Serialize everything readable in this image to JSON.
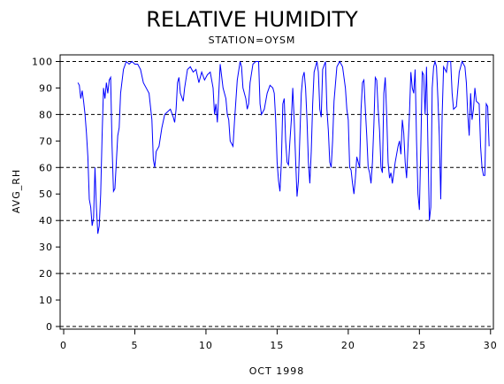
{
  "chart_data": {
    "type": "line",
    "title": "RELATIVE HUMIDITY",
    "subtitle": "STATION=OYSM",
    "x_label": "OCT 1998",
    "y_label": "AVG_RH",
    "color": "#0000ff",
    "xlim": [
      -0.25,
      30.2
    ],
    "ylim": [
      -1,
      102.5
    ],
    "xticks": [
      0,
      5,
      10,
      15,
      20,
      25,
      30
    ],
    "yticks": [
      0,
      10,
      20,
      30,
      40,
      50,
      60,
      70,
      80,
      90,
      100
    ],
    "grid_lines": [
      0,
      20,
      40,
      60,
      80,
      100
    ],
    "x": [
      1.0,
      1.1,
      1.2,
      1.3,
      1.4,
      1.5,
      1.6,
      1.7,
      1.8,
      1.9,
      2.0,
      2.1,
      2.2,
      2.3,
      2.4,
      2.5,
      2.6,
      2.7,
      2.8,
      2.9,
      3.0,
      3.1,
      3.2,
      3.3,
      3.4,
      3.5,
      3.6,
      3.7,
      3.8,
      3.9,
      4.0,
      4.2,
      4.4,
      4.6,
      4.8,
      5.0,
      5.2,
      5.4,
      5.6,
      5.8,
      6.0,
      6.2,
      6.3,
      6.4,
      6.5,
      6.7,
      6.9,
      7.1,
      7.3,
      7.5,
      7.7,
      7.8,
      7.9,
      8.0,
      8.1,
      8.2,
      8.4,
      8.5,
      8.7,
      8.9,
      9.1,
      9.3,
      9.5,
      9.7,
      9.9,
      10.1,
      10.3,
      10.5,
      10.6,
      10.7,
      10.8,
      10.9,
      11.0,
      11.2,
      11.4,
      11.5,
      11.6,
      11.7,
      11.9,
      12.0,
      12.2,
      12.4,
      12.5,
      12.6,
      12.8,
      12.9,
      13.0,
      13.1,
      13.3,
      13.5,
      13.7,
      13.8,
      13.9,
      14.1,
      14.3,
      14.5,
      14.7,
      14.8,
      14.9,
      15.0,
      15.1,
      15.2,
      15.3,
      15.4,
      15.5,
      15.6,
      15.7,
      15.8,
      15.9,
      16.0,
      16.1,
      16.2,
      16.3,
      16.4,
      16.5,
      16.6,
      16.7,
      16.8,
      16.9,
      17.0,
      17.1,
      17.2,
      17.3,
      17.4,
      17.5,
      17.6,
      17.8,
      17.9,
      18.0,
      18.1,
      18.2,
      18.4,
      18.5,
      18.6,
      18.7,
      18.8,
      18.9,
      19.0,
      19.2,
      19.4,
      19.6,
      19.8,
      19.9,
      20.0,
      20.1,
      20.2,
      20.3,
      20.4,
      20.5,
      20.6,
      20.8,
      20.9,
      21.0,
      21.1,
      21.2,
      21.3,
      21.4,
      21.5,
      21.6,
      21.7,
      21.8,
      21.9,
      22.0,
      22.1,
      22.2,
      22.3,
      22.4,
      22.5,
      22.6,
      22.7,
      22.8,
      22.9,
      23.0,
      23.1,
      23.3,
      23.5,
      23.6,
      23.7,
      23.8,
      23.9,
      24.0,
      24.1,
      24.3,
      24.4,
      24.5,
      24.6,
      24.7,
      24.8,
      24.9,
      25.0,
      25.1,
      25.2,
      25.3,
      25.4,
      25.5,
      25.6,
      25.7,
      25.8,
      25.9,
      26.0,
      26.1,
      26.2,
      26.3,
      26.4,
      26.5,
      26.6,
      26.7,
      26.9,
      27.0,
      27.2,
      27.3,
      27.4,
      27.6,
      27.8,
      28.0,
      28.2,
      28.3,
      28.4,
      28.5,
      28.6,
      28.7,
      28.8,
      28.9,
      29.0,
      29.2,
      29.3,
      29.4,
      29.5,
      29.6,
      29.7,
      29.8,
      29.9
    ],
    "values": [
      92,
      91,
      86,
      89,
      85,
      80,
      73,
      64,
      48,
      45,
      38,
      41,
      60,
      45,
      35,
      38,
      50,
      72,
      90,
      86,
      92,
      88,
      93,
      94,
      68,
      51,
      52,
      62,
      72,
      75,
      88,
      97,
      100,
      99,
      100,
      99,
      99,
      97,
      92,
      90,
      88,
      78,
      63,
      60,
      66,
      68,
      75,
      80,
      81,
      82,
      79,
      77,
      82,
      92,
      94,
      88,
      85,
      90,
      97,
      98,
      96,
      97,
      92,
      96,
      93,
      95,
      96,
      90,
      80,
      84,
      77,
      88,
      99,
      90,
      86,
      80,
      78,
      70,
      68,
      77,
      93,
      100,
      98,
      90,
      86,
      82,
      84,
      92,
      99,
      100,
      100,
      84,
      80,
      82,
      88,
      91,
      90,
      88,
      78,
      62,
      55,
      51,
      62,
      84,
      86,
      70,
      62,
      61,
      70,
      78,
      90,
      78,
      63,
      49,
      55,
      72,
      88,
      94,
      96,
      90,
      78,
      62,
      54,
      66,
      84,
      96,
      100,
      96,
      82,
      79,
      97,
      100,
      82,
      74,
      62,
      60,
      70,
      85,
      98,
      100,
      98,
      90,
      82,
      78,
      60,
      59,
      54,
      50,
      56,
      64,
      60,
      82,
      92,
      93,
      82,
      72,
      60,
      58,
      54,
      62,
      76,
      94,
      93,
      82,
      74,
      60,
      58,
      88,
      94,
      80,
      62,
      56,
      58,
      54,
      62,
      68,
      70,
      65,
      78,
      73,
      62,
      56,
      80,
      96,
      90,
      88,
      97,
      70,
      50,
      44,
      68,
      96,
      95,
      80,
      98,
      68,
      40,
      45,
      90,
      98,
      100,
      98,
      86,
      72,
      48,
      80,
      98,
      96,
      100,
      100,
      88,
      82,
      83,
      96,
      100,
      98,
      92,
      80,
      72,
      88,
      78,
      82,
      90,
      85,
      84,
      68,
      60,
      57,
      57,
      84,
      83,
      68
    ]
  }
}
